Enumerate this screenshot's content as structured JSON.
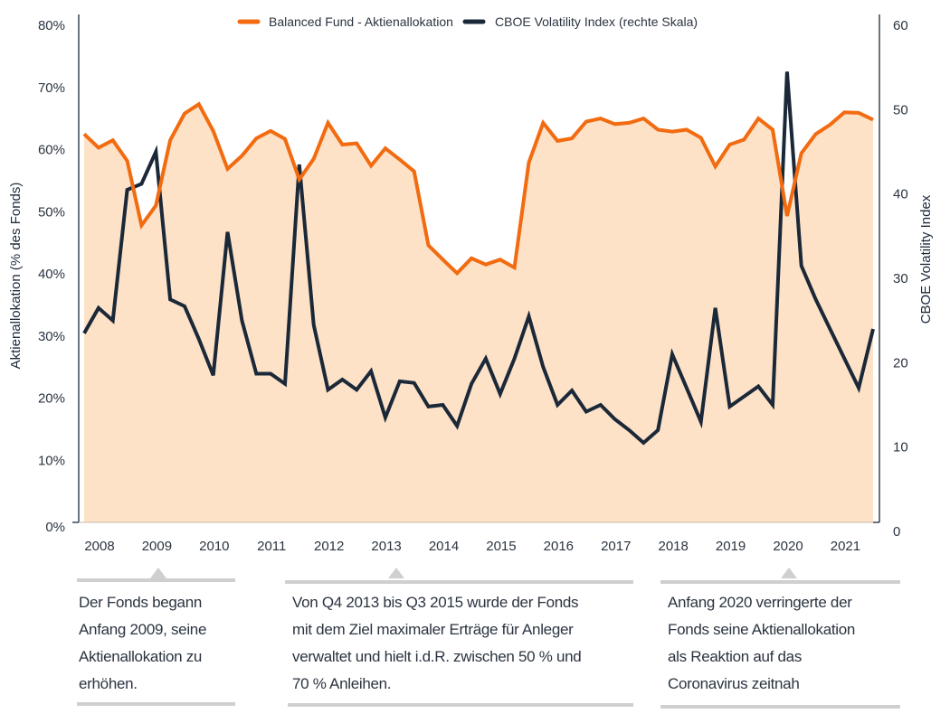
{
  "chart_data": {
    "type": "line",
    "title": "",
    "x_tick_labels": [
      "2008",
      "2009",
      "2010",
      "2011",
      "2012",
      "2013",
      "2014",
      "2015",
      "2016",
      "2017",
      "2018",
      "2019",
      "2020",
      "2021"
    ],
    "x_start": "2008 Q1",
    "x_frequency": "quarterly",
    "ylabel": "Aktienallokation (% des Fonds)",
    "y2label": "CBOE Volatility Index",
    "ylim": [
      0,
      80
    ],
    "y2lim": [
      0,
      60
    ],
    "y_ticks": [
      "0%",
      "10%",
      "20%",
      "30%",
      "40%",
      "50%",
      "60%",
      "70%",
      "80%"
    ],
    "y2_ticks": [
      "0",
      "10",
      "20",
      "30",
      "40",
      "50",
      "60"
    ],
    "grid": false,
    "legend_position": "top-center",
    "series": [
      {
        "name": "Balanced Fund - Aktienallokation",
        "axis": "left",
        "color": "#f26b10",
        "fill": "#fde2c8",
        "values": [
          62.5,
          60.3,
          61.5,
          58.2,
          47.8,
          51.0,
          61.5,
          65.8,
          67.3,
          63.0,
          56.9,
          59.0,
          61.8,
          63.0,
          61.7,
          55.2,
          58.5,
          64.3,
          60.8,
          61.0,
          57.4,
          60.2,
          58.4,
          56.5,
          44.6,
          42.3,
          40.1,
          42.5,
          41.5,
          42.3,
          41.0,
          57.9,
          64.3,
          61.4,
          61.8,
          64.5,
          65.0,
          64.1,
          64.3,
          65.0,
          63.2,
          62.9,
          63.2,
          61.9,
          57.3,
          60.8,
          61.6,
          65.0,
          63.2,
          49.3,
          59.4,
          62.5,
          64.0,
          66.0,
          65.9,
          64.8
        ]
      },
      {
        "name": "CBOE Volatility Index (rechte Skala)",
        "axis": "right",
        "color": "#1b2838",
        "values": [
          23.5,
          26.5,
          25.0,
          40.5,
          41.2,
          45.0,
          27.5,
          26.7,
          22.8,
          18.5,
          35.5,
          25.0,
          18.7,
          18.7,
          17.5,
          43.5,
          24.5,
          16.8,
          18.0,
          16.8,
          19.0,
          13.5,
          17.8,
          17.6,
          14.8,
          15.0,
          12.5,
          17.5,
          20.5,
          16.3,
          20.5,
          25.5,
          19.5,
          15.0,
          16.7,
          14.2,
          15.0,
          13.3,
          12.0,
          10.5,
          12.0,
          21.0,
          17.0,
          13.0,
          26.5,
          14.8,
          16.0,
          17.2,
          15.0,
          54.5,
          31.5,
          27.5,
          24.0,
          20.5,
          17.0,
          24.0,
          18.3
        ]
      }
    ],
    "annotations": [
      {
        "anchor": "2009",
        "text": "Der Fonds begann Anfang 2009, seine Aktienallokation zu erhöhen."
      },
      {
        "anchor": "2013",
        "text": "Von Q4 2013 bis Q3 2015 wurde der Fonds mit dem Ziel maximaler Erträge für Anleger verwaltet und hielt i.d.R. zwischen 50 % und 70 % Anleihen."
      },
      {
        "anchor": "2020",
        "text": "Anfang 2020 verringerte der Fonds seine Aktienallokation als Reaktion auf das Coronavirus zeitnah"
      }
    ]
  },
  "legend": {
    "fund_label": "Balanced Fund - Aktienallokation",
    "vix_label": "CBOE Volatility Index (rechte Skala)"
  },
  "notes": {
    "note1_lines": [
      "Der Fonds begann",
      "Anfang 2009, seine",
      "Aktienallokation zu",
      "erhöhen."
    ],
    "note2_lines": [
      "Von Q4 2013 bis Q3 2015 wurde der Fonds",
      "mit dem Ziel maximaler Erträge für Anleger",
      "verwaltet und hielt i.d.R. zwischen 50 % und",
      "70 % Anleihen."
    ],
    "note3_lines": [
      "Anfang 2020 verringerte der",
      "Fonds seine Aktienallokation",
      "als Reaktion auf das",
      "Coronavirus zeitnah"
    ]
  }
}
